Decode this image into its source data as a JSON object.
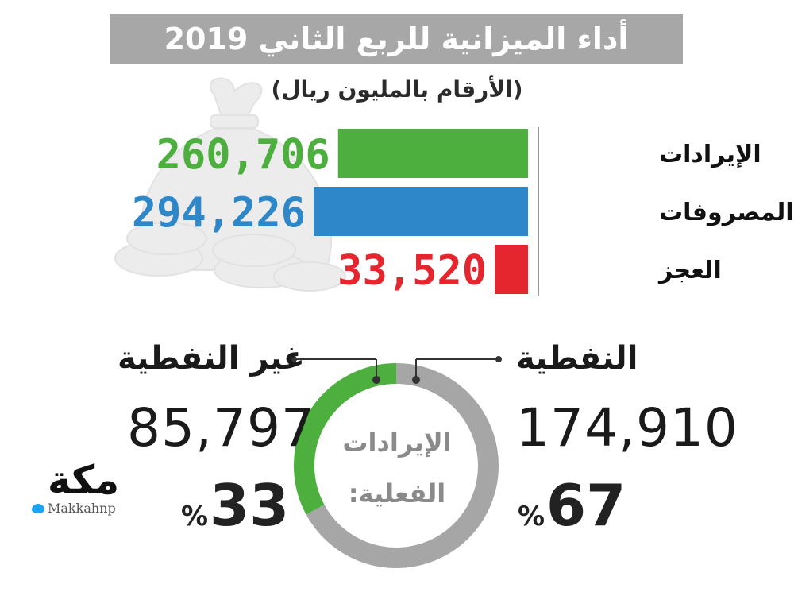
{
  "header": {
    "title": "أداء الميزانية للربع الثاني 2019",
    "subtitle": "(الأرقام بالمليون ريال)"
  },
  "colors": {
    "revenue": "#4caf3e",
    "expenses": "#2e87c8",
    "deficit": "#e5262f",
    "oil": "#a6a6a6",
    "non_oil": "#4caf3e",
    "title_bg": "#a7a7a7"
  },
  "chart_data": [
    {
      "type": "bar",
      "orientation": "horizontal",
      "categories": [
        "الإيرادات",
        "المصروفات",
        "العجز"
      ],
      "values": [
        260706,
        294226,
        33520
      ],
      "value_labels": [
        "260,706",
        "294,226",
        "33,520"
      ],
      "colors": [
        "#4caf3e",
        "#2e87c8",
        "#e5262f"
      ],
      "title": "",
      "xlabel": "",
      "ylabel": ""
    },
    {
      "type": "pie",
      "style": "donut",
      "center_label": [
        "الإيرادات",
        "الفعلية:"
      ],
      "slices": [
        {
          "name": "النفطية",
          "value": 174910,
          "value_label": "174,910",
          "percent": 67,
          "percent_label": "67",
          "color": "#a6a6a6"
        },
        {
          "name": "غير النفطية",
          "value": 85797,
          "value_label": "85,797",
          "percent": 33,
          "percent_label": "33",
          "color": "#4caf3e"
        }
      ],
      "percent_sign": "%"
    }
  ],
  "branding": {
    "logo_text": "مكة",
    "handle": "Makkahnp",
    "handle_icon": "twitter-bird-icon"
  }
}
